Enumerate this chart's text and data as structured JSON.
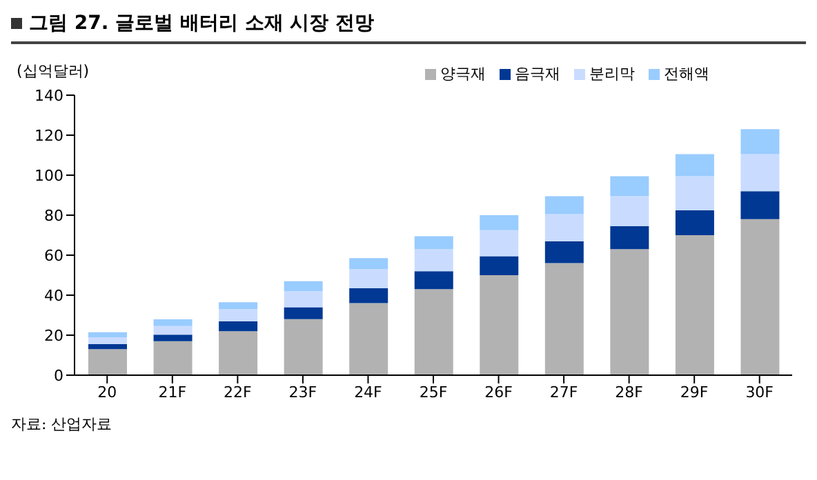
{
  "chart_data": {
    "type": "bar",
    "title": "그림 27. 글로벌 배터리 소재 시장 전망",
    "ylabel": "(십억달러)",
    "annotations": [
      "자료: 산업자료"
    ],
    "categories": [
      "20",
      "21F",
      "22F",
      "23F",
      "24F",
      "25F",
      "26F",
      "27F",
      "28F",
      "29F",
      "30F"
    ],
    "stacked": true,
    "legend": "top",
    "ylim": [
      0,
      140
    ],
    "yticks": [
      0,
      20,
      40,
      60,
      80,
      100,
      120,
      140
    ],
    "series": [
      {
        "name": "양극재",
        "color": "#b2b2b2",
        "values": [
          13,
          17,
          22,
          28,
          36,
          43,
          50,
          56,
          63,
          70,
          78
        ]
      },
      {
        "name": "음극재",
        "color": "#003893",
        "values": [
          2.5,
          3.3,
          5,
          6,
          7.5,
          9,
          9.5,
          11,
          11.5,
          12.5,
          14
        ]
      },
      {
        "name": "분리막",
        "color": "#c9dcff",
        "values": [
          3.5,
          4.3,
          6,
          8,
          9.5,
          11,
          13,
          13.5,
          15,
          17,
          18.5
        ]
      },
      {
        "name": "전해액",
        "color": "#99ccff",
        "values": [
          2.5,
          3.3,
          3.5,
          5,
          5.5,
          6.5,
          7.5,
          9,
          10,
          11,
          12.5
        ]
      }
    ]
  }
}
